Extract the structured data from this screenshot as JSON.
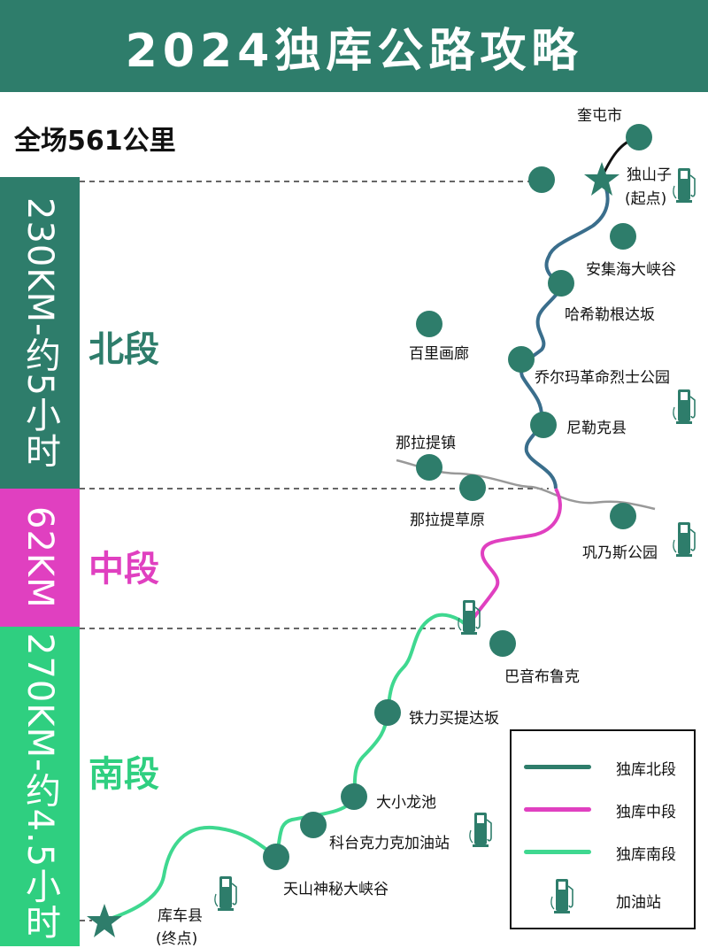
{
  "title": "2024独库公路攻略",
  "total": "全场561公里",
  "bands": {
    "north": "230KM-约5小时",
    "middle": "62KM",
    "south": "270KM-约4.5小时"
  },
  "segments": {
    "north": "北段",
    "middle": "中段",
    "south": "南段"
  },
  "places": {
    "kuitun": "奎屯市",
    "dushanzi": "独山子",
    "start": "(起点)",
    "anjihai": "安集海大峡谷",
    "haxi": "哈希勒根达坂",
    "baili": "百里画廊",
    "qiaerma": "乔尔玛革命烈士公园",
    "nileke": "尼勒克县",
    "nala_town": "那拉提镇",
    "nala_grass": "那拉提草原",
    "gongnaisi": "巩乃斯公园",
    "bayinbuluke": "巴音布鲁克",
    "tieli": "铁力买提达坂",
    "daxiao": "大小龙池",
    "ketai": "科台克力克加油站",
    "tianshan": "天山神秘大峡谷",
    "kuche": "库车县",
    "end": "(终点)"
  },
  "legend": {
    "north": "独库北段",
    "middle": "独库中段",
    "south": "独库南段",
    "gas": "加油站"
  },
  "colors": {
    "header": "#2e7d6b",
    "north_band": "#2e7d6b",
    "middle_band": "#e040c0",
    "south_band": "#2fcf80",
    "north_route": "#3a6e8c",
    "middle_route": "#e040c0",
    "south_route": "#3fd890",
    "marker": "#2e7d6b",
    "side_road": "#999999"
  }
}
